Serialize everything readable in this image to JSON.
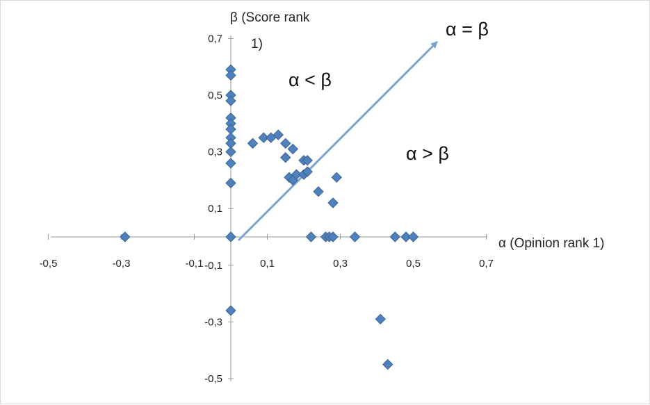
{
  "chart_data": {
    "type": "scatter",
    "xlabel": "α (Opinion rank 1)",
    "ylabel": "β (Score rank 1)",
    "xlim": [
      -0.5,
      0.7
    ],
    "ylim": [
      -0.5,
      0.7
    ],
    "x_tick_labels": [
      "-0,5",
      "-0,3",
      "-0,1",
      "0,1",
      "0,3",
      "0,5",
      "0,7"
    ],
    "y_tick_labels": [
      "0,7",
      "0,5",
      "0,3",
      "0,1",
      "-0,1",
      "-0,3",
      "-0,5"
    ],
    "annotations": {
      "arrow_label": "α = β",
      "upper_region": "α < β",
      "lower_region": "α > β"
    },
    "marker": {
      "shape": "diamond",
      "color": "#4f81bd"
    },
    "arrow_color": "#7aa3cc",
    "series": [
      {
        "points": [
          {
            "x": -0.29,
            "y": 0.0
          },
          {
            "x": 0.0,
            "y": 0.59
          },
          {
            "x": 0.0,
            "y": 0.57
          },
          {
            "x": 0.0,
            "y": 0.5
          },
          {
            "x": 0.0,
            "y": 0.48
          },
          {
            "x": 0.0,
            "y": 0.42
          },
          {
            "x": 0.0,
            "y": 0.4
          },
          {
            "x": 0.0,
            "y": 0.38
          },
          {
            "x": 0.0,
            "y": 0.35
          },
          {
            "x": 0.0,
            "y": 0.33
          },
          {
            "x": 0.0,
            "y": 0.3
          },
          {
            "x": 0.0,
            "y": 0.26
          },
          {
            "x": 0.0,
            "y": 0.19
          },
          {
            "x": 0.0,
            "y": 0.0
          },
          {
            "x": 0.0,
            "y": -0.26
          },
          {
            "x": 0.06,
            "y": 0.33
          },
          {
            "x": 0.09,
            "y": 0.35
          },
          {
            "x": 0.11,
            "y": 0.35
          },
          {
            "x": 0.13,
            "y": 0.36
          },
          {
            "x": 0.15,
            "y": 0.33
          },
          {
            "x": 0.15,
            "y": 0.28
          },
          {
            "x": 0.17,
            "y": 0.31
          },
          {
            "x": 0.16,
            "y": 0.21
          },
          {
            "x": 0.17,
            "y": 0.2
          },
          {
            "x": 0.18,
            "y": 0.22
          },
          {
            "x": 0.2,
            "y": 0.22
          },
          {
            "x": 0.2,
            "y": 0.27
          },
          {
            "x": 0.21,
            "y": 0.23
          },
          {
            "x": 0.21,
            "y": 0.27
          },
          {
            "x": 0.24,
            "y": 0.16
          },
          {
            "x": 0.28,
            "y": 0.12
          },
          {
            "x": 0.29,
            "y": 0.21
          },
          {
            "x": 0.22,
            "y": 0.0
          },
          {
            "x": 0.26,
            "y": 0.0
          },
          {
            "x": 0.27,
            "y": 0.0
          },
          {
            "x": 0.28,
            "y": 0.0
          },
          {
            "x": 0.34,
            "y": 0.0
          },
          {
            "x": 0.45,
            "y": 0.0
          },
          {
            "x": 0.48,
            "y": 0.0
          },
          {
            "x": 0.5,
            "y": 0.0
          },
          {
            "x": 0.41,
            "y": -0.29
          },
          {
            "x": 0.43,
            "y": -0.45
          }
        ]
      }
    ]
  }
}
